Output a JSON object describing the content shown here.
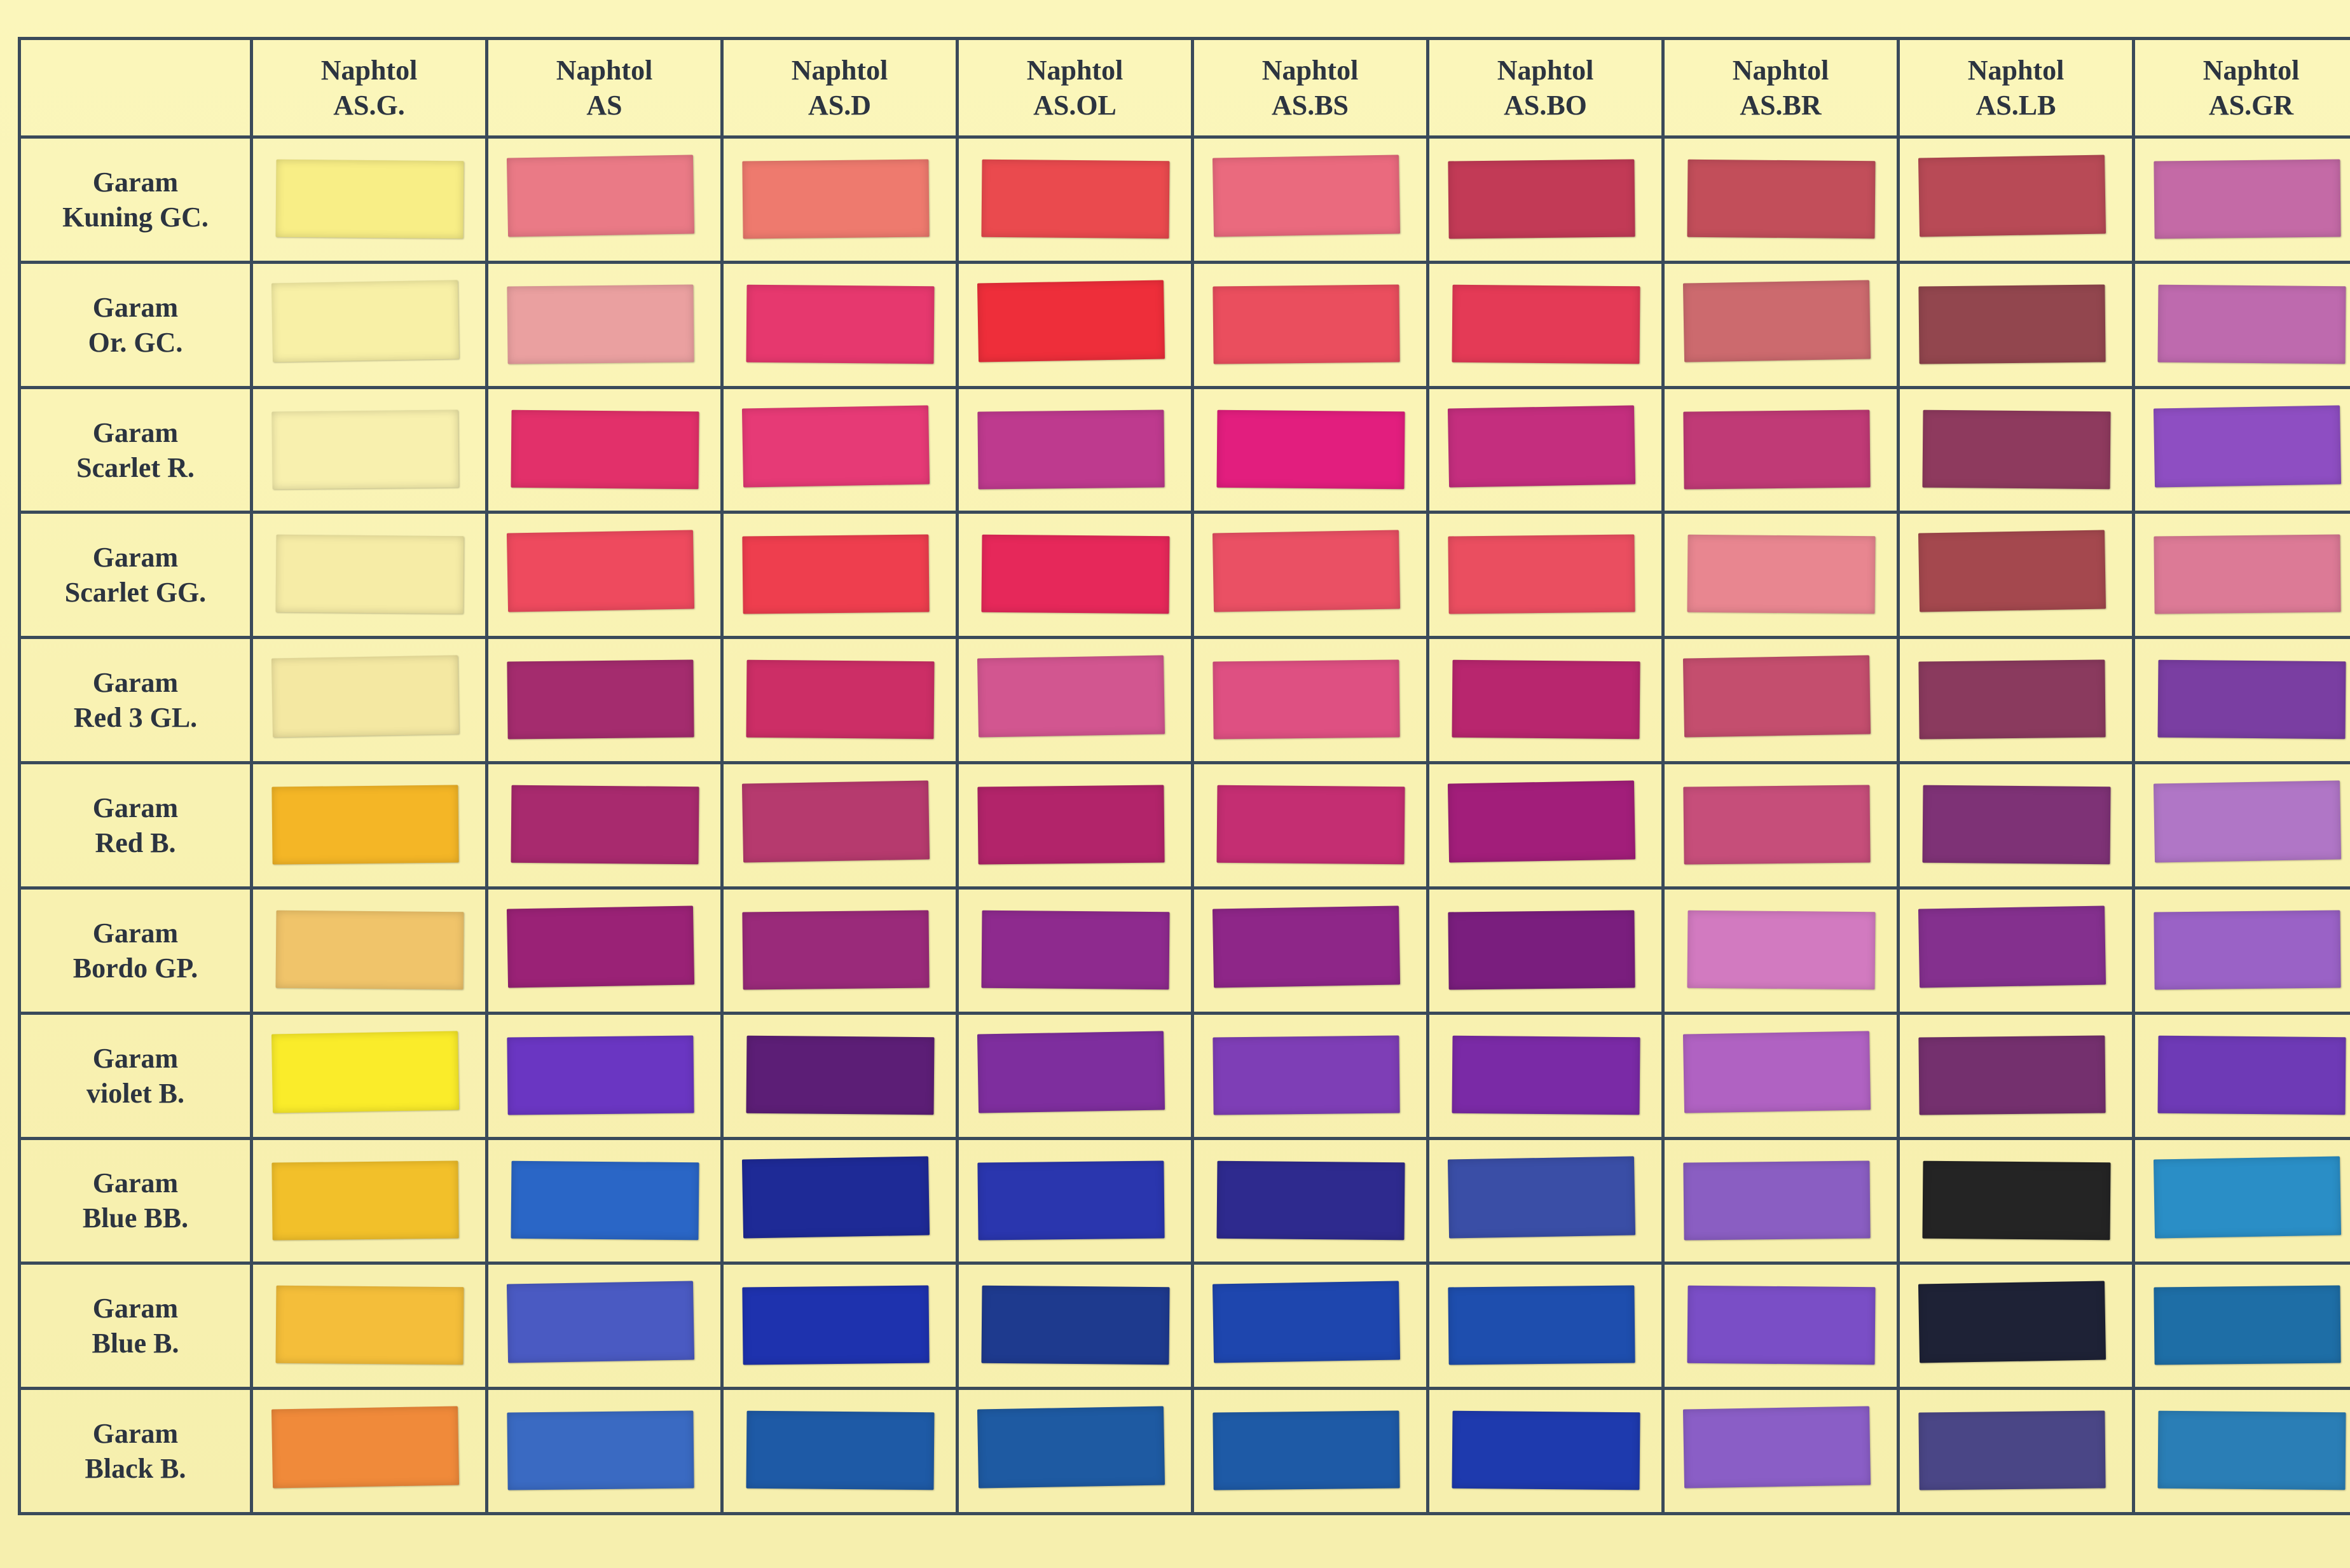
{
  "columns": [
    "Naphtol\nAS.G.",
    "Naphtol\nAS",
    "Naphtol\nAS.D",
    "Naphtol\nAS.OL",
    "Naphtol\nAS.BS",
    "Naphtol\nAS.BO",
    "Naphtol\nAS.BR",
    "Naphtol\nAS.LB",
    "Naphtol\nAS.GR"
  ],
  "rows": [
    {
      "label": "Garam\nKuning GC.",
      "swatches": [
        "#f8ee86",
        "#ea7a86",
        "#ee7a6e",
        "#ea4a4e",
        "#ea6a7e",
        "#c23a56",
        "#c24e5a",
        "#b84a56",
        "#c46aa6"
      ]
    },
    {
      "label": "Garam\nOr. GC.",
      "swatches": [
        "#f8f0a6",
        "#eaa0a0",
        "#e6386e",
        "#ee2e3a",
        "#ea4e5e",
        "#e43a56",
        "#cc6a6e",
        "#92464e",
        "#be6aae"
      ]
    },
    {
      "label": "Garam\nScarlet R.",
      "swatches": [
        "#f8f0ae",
        "#e2306a",
        "#e63a76",
        "#be3a8e",
        "#e21e7e",
        "#c42e7e",
        "#c03a76",
        "#8e3a5e",
        "#8e4ec2"
      ]
    },
    {
      "label": "Garam\nScarlet GG.",
      "swatches": [
        "#f6eca6",
        "#ee4a5e",
        "#ee3e4e",
        "#e6285a",
        "#ea5064",
        "#ea4e60",
        "#e88690",
        "#a4484e",
        "#dc7a96"
      ]
    },
    {
      "label": "Garam\nRed 3 GL.",
      "swatches": [
        "#f4e8a2",
        "#a42c6e",
        "#cc2e66",
        "#d25690",
        "#de5082",
        "#b8266e",
        "#c44e6e",
        "#8a3a5e",
        "#7a3ea2"
      ]
    },
    {
      "label": "Garam\nRed B.",
      "swatches": [
        "#f4b626",
        "#a82a6e",
        "#b63a6e",
        "#b2246a",
        "#c42e72",
        "#a21e7a",
        "#c64e7a",
        "#7e3276",
        "#b076c6"
      ]
    },
    {
      "label": "Garam\nBordo GP.",
      "swatches": [
        "#f0c46a",
        "#9a2276",
        "#9a2a7a",
        "#8e2a8e",
        "#8e2688",
        "#7a1e7e",
        "#d27ac0",
        "#84308e",
        "#9a62c6"
      ]
    },
    {
      "label": "Garam\nviolet B.",
      "swatches": [
        "#faec2a",
        "#6a36c2",
        "#5c1e76",
        "#7e2e9e",
        "#7e3eb6",
        "#7a2aa6",
        "#b062c2",
        "#74306e",
        "#6e3ab6"
      ]
    },
    {
      "label": "Garam\nBlue BB.",
      "swatches": [
        "#f2c02a",
        "#2a66c6",
        "#1e2a96",
        "#2a36ae",
        "#2e2a8e",
        "#3a4ea6",
        "#8a5ec2",
        "#242424",
        "#2a8ec6"
      ]
    },
    {
      "label": "Garam\nBlue B.",
      "swatches": [
        "#f4be3a",
        "#4a5ac2",
        "#1e32ae",
        "#1e3a8e",
        "#1e46ae",
        "#1e4eae",
        "#7a4ec6",
        "#1e2236",
        "#1e6ea6"
      ]
    },
    {
      "label": "Garam\nBlack B.",
      "swatches": [
        "#f08a3a",
        "#3a6ac2",
        "#1e5aa6",
        "#1e5aa2",
        "#1e5aa6",
        "#1e3aae",
        "#8a5ec6",
        "#4a4686",
        "#2a7eb6"
      ]
    }
  ]
}
